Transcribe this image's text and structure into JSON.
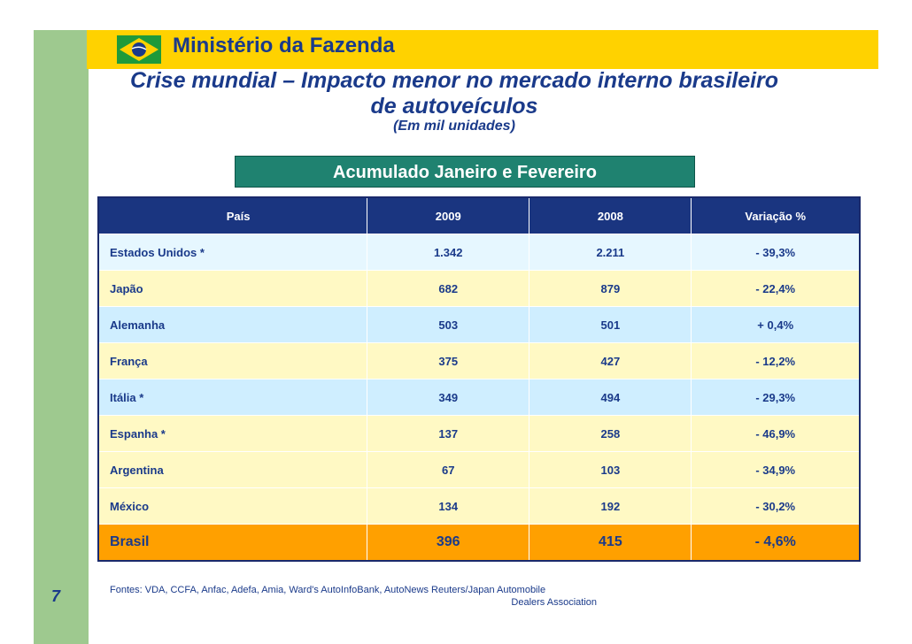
{
  "header": {
    "ministry": "Ministério da Fazenda",
    "title_line1": "Crise mundial – Impacto menor no mercado interno brasileiro",
    "title_line2": "de autoveículos",
    "subtitle": "(Em mil unidades)"
  },
  "banner": "Acumulado Janeiro e Fevereiro",
  "table": {
    "headers": [
      "País",
      "2009",
      "2008",
      "Variação %"
    ],
    "rows": [
      {
        "country": "Estados Unidos *",
        "y2009": "1.342",
        "y2008": "2.211",
        "var": "- 39,3%"
      },
      {
        "country": "Japão",
        "y2009": "682",
        "y2008": "879",
        "var": "- 22,4%"
      },
      {
        "country": "Alemanha",
        "y2009": "503",
        "y2008": "501",
        "var": "+ 0,4%"
      },
      {
        "country": "França",
        "y2009": "375",
        "y2008": "427",
        "var": "- 12,2%"
      },
      {
        "country": "Itália *",
        "y2009": "349",
        "y2008": "494",
        "var": "- 29,3%"
      },
      {
        "country": "Espanha *",
        "y2009": "137",
        "y2008": "258",
        "var": "- 46,9%"
      },
      {
        "country": "Argentina",
        "y2009": "67",
        "y2008": "103",
        "var": "- 34,9%"
      },
      {
        "country": "México",
        "y2009": "134",
        "y2008": "192",
        "var": "- 30,2%"
      },
      {
        "country": "Brasil",
        "y2009": "396",
        "y2008": "415",
        "var": "- 4,6%"
      }
    ]
  },
  "sources": {
    "line1": "Fontes: VDA, CCFA, Anfac, Adefa, Amia, Ward's AutoInfoBank, AutoNews Reuters/Japan Automobile",
    "line2": "Dealers Association"
  },
  "page_number": "7",
  "colors": {
    "brand_blue": "#1a3a8a",
    "header_yellow": "#ffd200",
    "banner_green": "#1f8270",
    "brasil_orange": "#ffa000"
  }
}
